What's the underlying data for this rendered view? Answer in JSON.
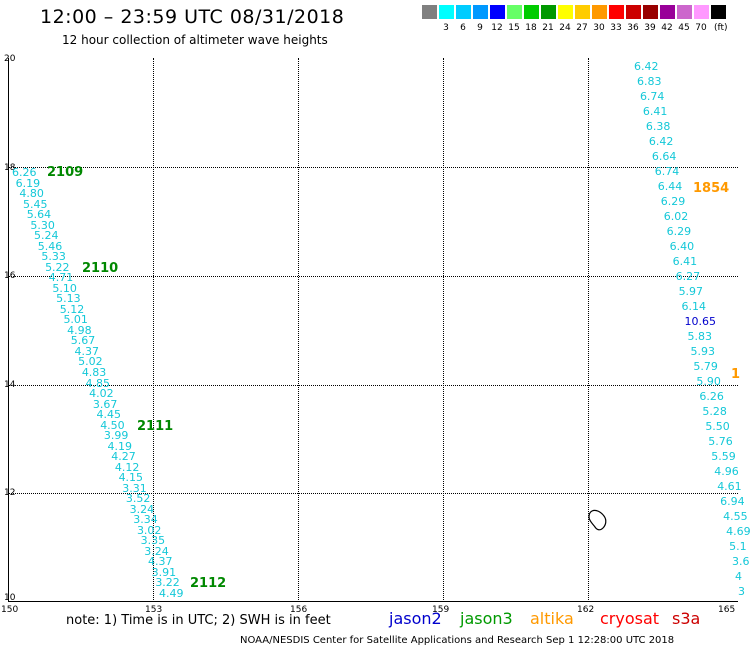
{
  "header": {
    "title": "12:00 – 23:59 UTC 08/31/2018",
    "subtitle": "12 hour collection of altimeter wave heights"
  },
  "scale": {
    "swatches": [
      {
        "color": "#808080",
        "label": ""
      },
      {
        "color": "#00ffff",
        "label": "3"
      },
      {
        "color": "#00ccff",
        "label": "6"
      },
      {
        "color": "#0099ff",
        "label": "9"
      },
      {
        "color": "#0000ff",
        "label": "12"
      },
      {
        "color": "#66ff66",
        "label": "15"
      },
      {
        "color": "#00cc00",
        "label": "18"
      },
      {
        "color": "#009900",
        "label": "21"
      },
      {
        "color": "#ffff00",
        "label": "24"
      },
      {
        "color": "#ffcc00",
        "label": "27"
      },
      {
        "color": "#ff9900",
        "label": "30"
      },
      {
        "color": "#ff0000",
        "label": "33"
      },
      {
        "color": "#cc0000",
        "label": "36"
      },
      {
        "color": "#990000",
        "label": "39"
      },
      {
        "color": "#990099",
        "label": "42"
      },
      {
        "color": "#cc66cc",
        "label": "45"
      },
      {
        "color": "#ff99ff",
        "label": "70"
      },
      {
        "color": "#000000",
        "label": ""
      }
    ],
    "unit": "(ft)"
  },
  "axes": {
    "y_labels": [
      "20",
      "18",
      "16",
      "14",
      "12",
      "10"
    ],
    "x_labels": [
      "150",
      "153",
      "156",
      "159",
      "162",
      "165"
    ]
  },
  "left_track": {
    "values": [
      "6.26",
      "6.19",
      "4.80",
      "5.45",
      "5.64",
      "5.30",
      "5.24",
      "5.46",
      "5.33",
      "5.22",
      "4.71",
      "5.10",
      "5.13",
      "5.12",
      "5.01",
      "4.98",
      "5.67",
      "4.37",
      "5.02",
      "4.83",
      "4.85",
      "4.02",
      "3.67",
      "4.45",
      "4.50",
      "3.99",
      "4.19",
      "4.27",
      "4.12",
      "4.15",
      "3.31",
      "3.52",
      "3.24",
      "3.34",
      "3.02",
      "3.35",
      "3.24",
      "4.37",
      "3.91",
      "3.22",
      "4.49"
    ],
    "times": [
      "2109",
      "2110",
      "2111",
      "2112"
    ]
  },
  "right_track": {
    "values": [
      "6.42",
      "6.83",
      "6.74",
      "6.41",
      "6.38",
      "6.42",
      "6.64",
      "6.74",
      "6.44",
      "6.29",
      "6.02",
      "6.29",
      "6.40",
      "6.41",
      "6.27",
      "5.97",
      "6.14",
      "10.65",
      "5.83",
      "5.93",
      "5.79",
      "5.90",
      "6.26",
      "5.28",
      "5.50",
      "5.76",
      "5.59",
      "4.96",
      "4.61",
      "6.94",
      "4.55",
      "4.69",
      "5.1",
      "3.6",
      "4",
      "3"
    ],
    "times": [
      "1854",
      "1"
    ]
  },
  "footer": {
    "note": "note: 1) Time is in UTC; 2) SWH is in feet",
    "satellites": [
      {
        "name": "jason2",
        "color": "#0000cc"
      },
      {
        "name": "jason3",
        "color": "#009900"
      },
      {
        "name": "altika",
        "color": "#ff9900"
      },
      {
        "name": "cryosat",
        "color": "#ff0000"
      },
      {
        "name": "s3a",
        "color": "#cc0000"
      }
    ],
    "credit": "NOAA/NESDIS Center for Satellite Applications and Research    Sep  1 12:28:00 UTC 2018"
  }
}
